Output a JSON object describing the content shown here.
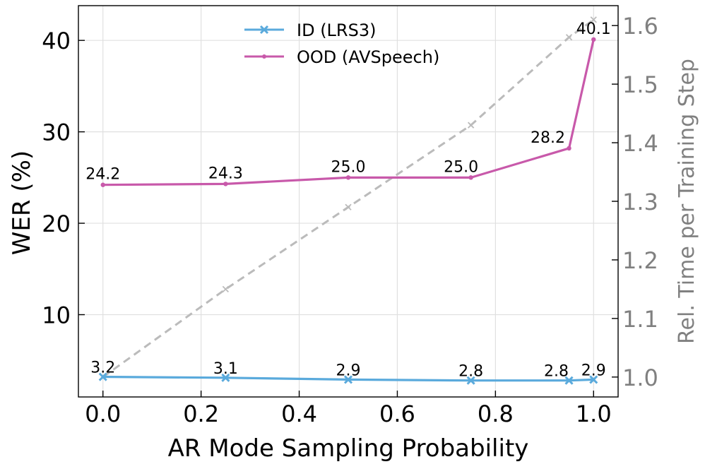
{
  "chart_data": {
    "type": "line",
    "xlabel": "AR Mode Sampling Probability",
    "ylabel_left": "WER (%)",
    "ylabel_right": "Rel. Time per Training Step",
    "x_ticks": [
      "0.0",
      "0.2",
      "0.4",
      "0.6",
      "0.8",
      "1.0"
    ],
    "x_tick_values": [
      0.0,
      0.2,
      0.4,
      0.6,
      0.8,
      1.0
    ],
    "y_left_ticks": [
      "10",
      "20",
      "30",
      "40"
    ],
    "y_left_tick_values": [
      10,
      20,
      30,
      40
    ],
    "y_right_ticks": [
      "1.0",
      "1.1",
      "1.2",
      "1.3",
      "1.4",
      "1.5",
      "1.6"
    ],
    "y_right_tick_values": [
      1.0,
      1.1,
      1.2,
      1.3,
      1.4,
      1.5,
      1.6
    ],
    "xlim": [
      -0.05,
      1.05
    ],
    "ylim_left": [
      1.0,
      43.8
    ],
    "ylim_right": [
      0.966,
      1.634
    ],
    "grid": true,
    "legend_position": "top-center",
    "series": [
      {
        "name": "ID (LRS3)",
        "axis": "left",
        "color": "#5aaadc",
        "x": [
          0.0,
          0.25,
          0.5,
          0.75,
          0.95,
          1.0
        ],
        "values": [
          3.2,
          3.1,
          2.9,
          2.8,
          2.8,
          2.9
        ],
        "labels": [
          "3.2",
          "3.1",
          "2.9",
          "2.8",
          "2.8",
          "2.9"
        ]
      },
      {
        "name": "OOD (AVSpeech)",
        "axis": "left",
        "color": "#c859aa",
        "x": [
          0.0,
          0.25,
          0.5,
          0.75,
          0.95,
          1.0
        ],
        "values": [
          24.2,
          24.3,
          25.0,
          25.0,
          28.2,
          40.1
        ],
        "labels": [
          "24.2",
          "24.3",
          "25.0",
          "25.0",
          "28.2",
          "40.1"
        ]
      },
      {
        "name": "Rel. Time per Training Step",
        "axis": "right",
        "color": "#bbbbbb",
        "style": "dashed",
        "x": [
          0.0,
          0.25,
          0.5,
          0.75,
          0.95,
          1.0
        ],
        "values": [
          1.0,
          1.15,
          1.29,
          1.43,
          1.58,
          1.61
        ]
      }
    ]
  }
}
